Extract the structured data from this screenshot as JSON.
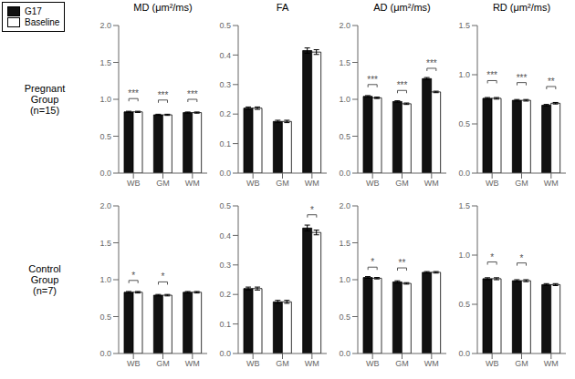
{
  "chart_data": [
    {
      "type": "bar",
      "title": "MD (μm²/ms)",
      "ylabel": "Pregnant\nGroup\n(n=15)",
      "categories": [
        "WB",
        "GM",
        "WM"
      ],
      "series": [
        {
          "name": "G17",
          "color": "#111111",
          "values": [
            0.83,
            0.79,
            0.82
          ],
          "errors": [
            0.008,
            0.008,
            0.008
          ]
        },
        {
          "name": "Baseline",
          "color": "white",
          "values": [
            0.83,
            0.79,
            0.82
          ],
          "errors": [
            0.008,
            0.008,
            0.008
          ]
        }
      ],
      "ylim": [
        0.0,
        2.0
      ],
      "yticks": [
        {
          "value": 0,
          "label": "0.0"
        },
        0.5,
        {
          "value": 1,
          "label": "1.0"
        },
        1.5,
        {
          "value": 2,
          "label": "2.0"
        }
      ],
      "annotations": [
        {
          "text": "***",
          "x": "WB",
          "y": 1.01
        },
        {
          "text": "***",
          "x": "GM",
          "y": 0.99
        },
        {
          "text": "***",
          "x": "WM",
          "y": 1.0
        }
      ],
      "grid": false,
      "legend": "upper left"
    },
    {
      "type": "bar",
      "title": "FA",
      "categories": [
        "WB",
        "GM",
        "WM"
      ],
      "series": [
        {
          "name": "G17",
          "color": "#111111",
          "values": [
            0.22,
            0.175,
            0.415
          ],
          "errors": [
            0.004,
            0.004,
            0.009
          ]
        },
        {
          "name": "Baseline",
          "color": "white",
          "values": [
            0.22,
            0.175,
            0.41
          ],
          "errors": [
            0.004,
            0.004,
            0.008
          ]
        }
      ],
      "ylim": [
        0.0,
        0.5
      ],
      "yticks": [
        {
          "value": 0,
          "label": "0.0"
        },
        0.1,
        0.2,
        0.3,
        0.4,
        0.5
      ],
      "annotations": [],
      "grid": false
    },
    {
      "type": "bar",
      "title": "AD (μm²/ms)",
      "categories": [
        "WB",
        "GM",
        "WM"
      ],
      "series": [
        {
          "name": "G17",
          "color": "#111111",
          "values": [
            1.04,
            0.97,
            1.28
          ],
          "errors": [
            0.01,
            0.01,
            0.015
          ]
        },
        {
          "name": "Baseline",
          "color": "white",
          "values": [
            1.02,
            0.94,
            1.1
          ],
          "errors": [
            0.01,
            0.01,
            0.01
          ]
        }
      ],
      "ylim": [
        0.0,
        2.0
      ],
      "yticks": [
        {
          "value": 0,
          "label": "0.0"
        },
        0.5,
        {
          "value": 1,
          "label": "1.0"
        },
        1.5,
        {
          "value": 2,
          "label": "2.0"
        }
      ],
      "annotations": [
        {
          "text": "***",
          "x": "WB",
          "y": 1.2
        },
        {
          "text": "***",
          "x": "GM",
          "y": 1.12
        },
        {
          "text": "***",
          "x": "WM",
          "y": 1.42
        }
      ],
      "grid": false
    },
    {
      "type": "bar",
      "title": "RD (μm²/ms)",
      "categories": [
        "WB",
        "GM",
        "WM"
      ],
      "series": [
        {
          "name": "G17",
          "color": "#111111",
          "values": [
            0.76,
            0.74,
            0.69
          ],
          "errors": [
            0.008,
            0.008,
            0.008
          ]
        },
        {
          "name": "Baseline",
          "color": "white",
          "values": [
            0.76,
            0.74,
            0.71
          ],
          "errors": [
            0.008,
            0.008,
            0.008
          ]
        }
      ],
      "ylim": [
        0.0,
        1.5
      ],
      "yticks": [
        {
          "value": 0,
          "label": "0.0"
        },
        0.5,
        {
          "value": 1,
          "label": "1.0"
        },
        1.5
      ],
      "annotations": [
        {
          "text": "***",
          "x": "WB",
          "y": 0.94
        },
        {
          "text": "***",
          "x": "GM",
          "y": 0.92
        },
        {
          "text": "**",
          "x": "WM",
          "y": 0.88
        }
      ],
      "grid": false
    },
    {
      "type": "bar",
      "ylabel": "Control\nGroup\n(n=7)",
      "categories": [
        "WB",
        "GM",
        "WM"
      ],
      "series": [
        {
          "name": "G17",
          "color": "#111111",
          "values": [
            0.83,
            0.79,
            0.83
          ],
          "errors": [
            0.01,
            0.01,
            0.01
          ]
        },
        {
          "name": "Baseline",
          "color": "white",
          "values": [
            0.83,
            0.79,
            0.83
          ],
          "errors": [
            0.01,
            0.01,
            0.01
          ]
        }
      ],
      "ylim": [
        0.0,
        2.0
      ],
      "yticks": [
        {
          "value": 0,
          "label": "0.0"
        },
        0.5,
        {
          "value": 1,
          "label": "1.0"
        },
        1.5,
        {
          "value": 2,
          "label": "2.0"
        }
      ],
      "annotations": [
        {
          "text": "*",
          "x": "WB",
          "y": 0.99
        },
        {
          "text": "*",
          "x": "GM",
          "y": 0.97
        }
      ],
      "grid": false
    },
    {
      "type": "bar",
      "categories": [
        "WB",
        "GM",
        "WM"
      ],
      "series": [
        {
          "name": "G17",
          "color": "#111111",
          "values": [
            0.22,
            0.175,
            0.425
          ],
          "errors": [
            0.005,
            0.005,
            0.01
          ]
        },
        {
          "name": "Baseline",
          "color": "white",
          "values": [
            0.22,
            0.175,
            0.41
          ],
          "errors": [
            0.005,
            0.005,
            0.008
          ]
        }
      ],
      "ylim": [
        0.0,
        0.5
      ],
      "yticks": [
        {
          "value": 0,
          "label": "0.0"
        },
        0.1,
        0.2,
        0.3,
        0.4,
        0.5
      ],
      "annotations": [
        {
          "text": "*",
          "x": "WM",
          "y": 0.47
        }
      ],
      "grid": false
    },
    {
      "type": "bar",
      "categories": [
        "WB",
        "GM",
        "WM"
      ],
      "series": [
        {
          "name": "G17",
          "color": "#111111",
          "values": [
            1.03,
            0.97,
            1.1
          ],
          "errors": [
            0.012,
            0.015,
            0.01
          ]
        },
        {
          "name": "Baseline",
          "color": "white",
          "values": [
            1.02,
            0.95,
            1.1
          ],
          "errors": [
            0.01,
            0.01,
            0.01
          ]
        }
      ],
      "ylim": [
        0.0,
        2.0
      ],
      "yticks": [
        {
          "value": 0,
          "label": "0.0"
        },
        0.5,
        {
          "value": 1,
          "label": "1.0"
        },
        1.5,
        {
          "value": 2,
          "label": "2.0"
        }
      ],
      "annotations": [
        {
          "text": "*",
          "x": "WB",
          "y": 1.17
        },
        {
          "text": "**",
          "x": "GM",
          "y": 1.16
        }
      ],
      "grid": false
    },
    {
      "type": "bar",
      "categories": [
        "WB",
        "GM",
        "WM"
      ],
      "series": [
        {
          "name": "G17",
          "color": "#111111",
          "values": [
            0.76,
            0.74,
            0.7
          ],
          "errors": [
            0.01,
            0.01,
            0.01
          ]
        },
        {
          "name": "Baseline",
          "color": "white",
          "values": [
            0.76,
            0.74,
            0.7
          ],
          "errors": [
            0.01,
            0.01,
            0.01
          ]
        }
      ],
      "ylim": [
        0.0,
        1.5
      ],
      "yticks": [
        {
          "value": 0,
          "label": "0.0"
        },
        0.5,
        {
          "value": 1,
          "label": "1.0"
        },
        1.5
      ],
      "annotations": [
        {
          "text": "*",
          "x": "WB",
          "y": 0.93
        },
        {
          "text": "*",
          "x": "GM",
          "y": 0.92
        }
      ],
      "grid": false
    }
  ]
}
